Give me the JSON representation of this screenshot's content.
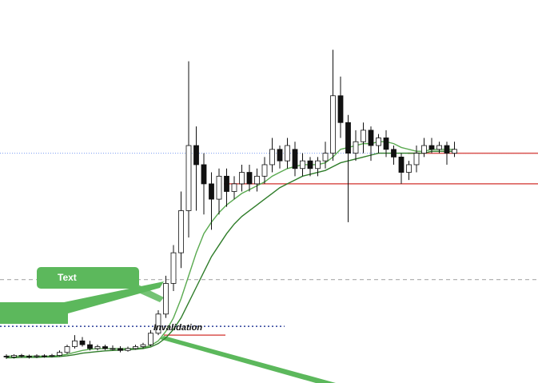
{
  "chart_data": {
    "type": "candlestick",
    "ylim": [
      0,
      100
    ],
    "open": [
      7,
      6.8,
      7.2,
      7,
      6.9,
      7.1,
      7,
      7.2,
      8,
      9.5,
      11,
      10,
      9,
      9.5,
      9,
      9,
      8.5,
      9,
      9.5,
      10,
      13,
      18,
      26,
      34,
      45,
      62,
      57,
      52,
      48,
      54,
      50,
      52,
      55,
      52,
      54,
      57,
      61,
      58,
      61,
      56,
      58,
      56,
      58,
      60,
      75,
      68,
      60,
      63,
      66,
      62,
      64,
      61,
      59,
      55,
      57,
      60,
      62,
      61,
      62,
      60
    ],
    "high": [
      7.5,
      7.5,
      7.6,
      7.4,
      7.5,
      7.5,
      7.6,
      8.5,
      10,
      12.5,
      12,
      11,
      10,
      10,
      9.8,
      9.6,
      9.5,
      10,
      10.5,
      13.8,
      19,
      28,
      36,
      50,
      84,
      67,
      60,
      55,
      56,
      56,
      54,
      57,
      57,
      56,
      59,
      64,
      62,
      64,
      63,
      60,
      59,
      59,
      63,
      87,
      80,
      70,
      66,
      68,
      67,
      65,
      66,
      62,
      60,
      58,
      62,
      64,
      64,
      63,
      63,
      63
    ],
    "low": [
      6.3,
      6.4,
      6.6,
      6.4,
      6.5,
      6.6,
      6.7,
      7,
      7.6,
      9,
      9.5,
      8.5,
      8.5,
      8.6,
      8.5,
      8,
      8.2,
      8.7,
      9,
      9.6,
      12.5,
      17,
      24,
      30,
      38,
      45,
      44,
      40,
      44,
      46,
      48,
      50,
      50,
      50,
      52,
      55,
      56,
      56,
      54,
      54,
      54,
      54,
      56,
      58,
      64,
      42,
      58,
      60,
      58,
      60,
      59,
      57,
      52,
      53,
      55,
      59,
      60,
      60,
      57,
      59
    ],
    "close": [
      6.8,
      7.2,
      7,
      6.9,
      7.1,
      7,
      7.2,
      8,
      9.5,
      11,
      10,
      9,
      9.5,
      9,
      9,
      8.5,
      9,
      9.5,
      10,
      13,
      18,
      26,
      34,
      45,
      62,
      57,
      52,
      48,
      54,
      50,
      52,
      55,
      52,
      54,
      57,
      61,
      58,
      62,
      56,
      58,
      56,
      58,
      60,
      75,
      68,
      60,
      63,
      66,
      62,
      64,
      61,
      59,
      55,
      57,
      60,
      62,
      61,
      62,
      60,
      61
    ],
    "up_color": "#ffffff",
    "down_color": "#111111",
    "series": [
      {
        "color": "#5aaa50",
        "values": [
          7,
          7,
          7,
          7,
          7,
          7,
          7,
          7.2,
          7.5,
          8,
          8.5,
          8.8,
          9,
          9,
          9,
          9,
          9,
          9,
          9.2,
          9.8,
          11,
          13.5,
          17,
          22,
          28,
          34,
          39,
          42,
          44.5,
          46.5,
          48,
          49.5,
          50.5,
          51.5,
          52.5,
          54,
          55,
          56,
          56.5,
          57,
          57,
          57,
          57.5,
          59,
          61,
          61.5,
          62,
          62.5,
          62.5,
          63,
          63,
          62.5,
          61.5,
          61,
          60.5,
          60.5,
          61,
          61,
          61,
          61
        ]
      },
      {
        "color": "#2f7d2a",
        "values": [
          6.6,
          6.6,
          6.7,
          6.7,
          6.7,
          6.8,
          6.8,
          6.9,
          7.1,
          7.4,
          7.8,
          8,
          8.2,
          8.4,
          8.5,
          8.6,
          8.7,
          8.8,
          9,
          9.4,
          10.3,
          11.8,
          14,
          17,
          21,
          25,
          29,
          33,
          36,
          39,
          41.5,
          43.5,
          45,
          46.5,
          48,
          49.5,
          51,
          52,
          53,
          54,
          54.5,
          55,
          55.5,
          56.5,
          57.5,
          58,
          58.5,
          59,
          59.5,
          60,
          60,
          60,
          60,
          60,
          60,
          60,
          60.5,
          60.5,
          60.5,
          60.5
        ]
      }
    ],
    "levels": [
      {
        "value": 60,
        "color": "#7a9cf0"
      },
      {
        "value": 60,
        "color": "#d9534f"
      },
      {
        "value": 52,
        "color": "#d9534f"
      },
      {
        "value": 27,
        "color": "#aaaaaa"
      },
      {
        "value": 14.8,
        "color": "#2a3f9a"
      },
      {
        "value": 12.5,
        "color": "#d9534f"
      }
    ],
    "annotations": {
      "callout": "Text",
      "invalidation": "Invalidation"
    }
  }
}
